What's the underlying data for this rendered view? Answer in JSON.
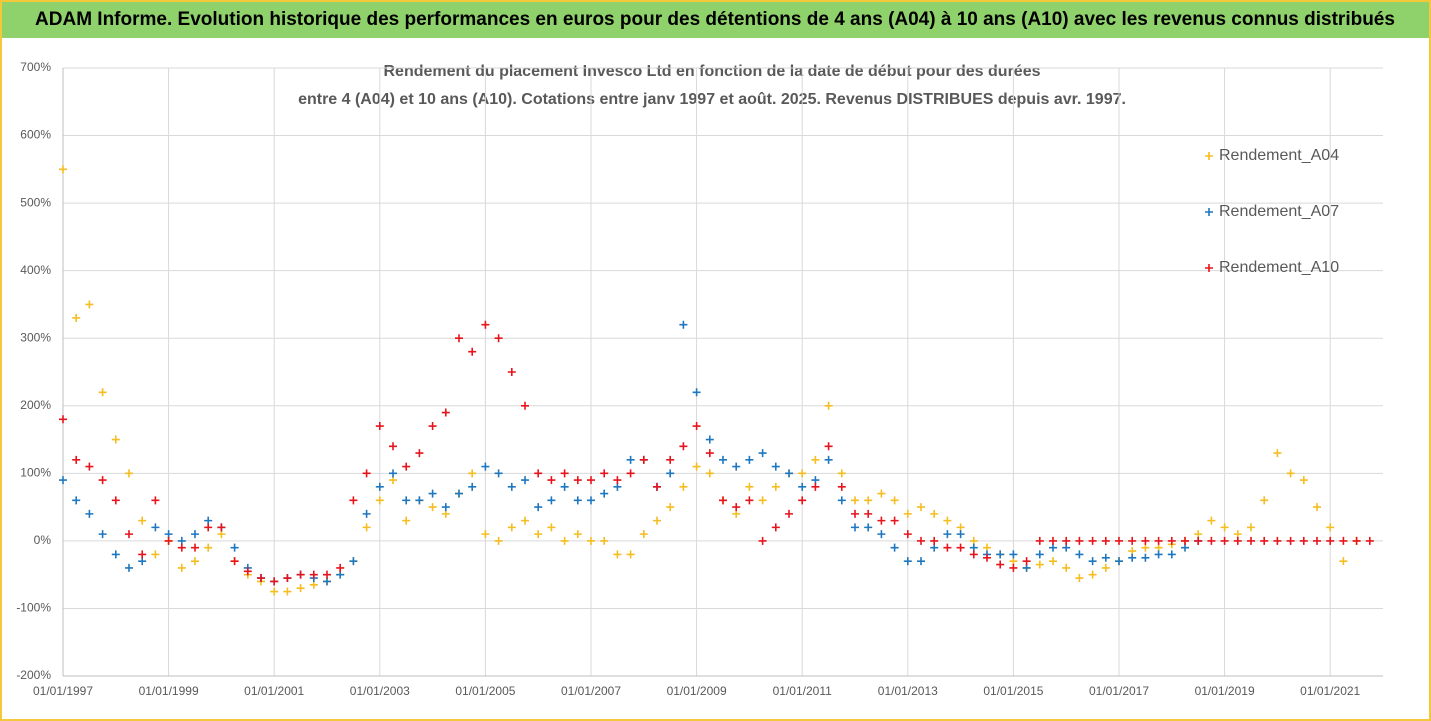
{
  "header": {
    "title": "ADAM Informe. Evolution historique des performances en euros pour des détentions de 4 ans (A04) à 10 ans (A10) avec les revenus connus distribués"
  },
  "chart_data": {
    "type": "scatter",
    "title": "Rendement du placement Invesco Ltd en fonction de la date de début pour des durées",
    "subtitle": "entre 4 (A04) et 10 ans (A10). Cotations entre janv 1997 et août. 2025. Revenus DISTRIBUES depuis avr. 1997.",
    "x": [
      "01/01/1997",
      "01/04/1997",
      "01/07/1997",
      "01/10/1997",
      "01/01/1998",
      "01/04/1998",
      "01/07/1998",
      "01/10/1998",
      "01/01/1999",
      "01/04/1999",
      "01/07/1999",
      "01/10/1999",
      "01/01/2000",
      "01/04/2000",
      "01/07/2000",
      "01/10/2000",
      "01/01/2001",
      "01/04/2001",
      "01/07/2001",
      "01/10/2001",
      "01/01/2002",
      "01/04/2002",
      "01/07/2002",
      "01/10/2002",
      "01/01/2003",
      "01/04/2003",
      "01/07/2003",
      "01/10/2003",
      "01/01/2004",
      "01/04/2004",
      "01/07/2004",
      "01/10/2004",
      "01/01/2005",
      "01/04/2005",
      "01/07/2005",
      "01/10/2005",
      "01/01/2006",
      "01/04/2006",
      "01/07/2006",
      "01/10/2006",
      "01/01/2007",
      "01/04/2007",
      "01/07/2007",
      "01/10/2007",
      "01/01/2008",
      "01/04/2008",
      "01/07/2008",
      "01/10/2008",
      "01/01/2009",
      "01/04/2009",
      "01/07/2009",
      "01/10/2009",
      "01/01/2010",
      "01/04/2010",
      "01/07/2010",
      "01/10/2010",
      "01/01/2011",
      "01/04/2011",
      "01/07/2011",
      "01/10/2011",
      "01/01/2012",
      "01/04/2012",
      "01/07/2012",
      "01/10/2012",
      "01/01/2013",
      "01/04/2013",
      "01/07/2013",
      "01/10/2013",
      "01/01/2014",
      "01/04/2014",
      "01/07/2014",
      "01/10/2014",
      "01/01/2015",
      "01/04/2015",
      "01/07/2015",
      "01/10/2015",
      "01/01/2016",
      "01/04/2016",
      "01/07/2016",
      "01/10/2016",
      "01/01/2017",
      "01/04/2017",
      "01/07/2017",
      "01/10/2017",
      "01/01/2018",
      "01/04/2018",
      "01/07/2018",
      "01/10/2018",
      "01/01/2019",
      "01/04/2019",
      "01/07/2019",
      "01/10/2019",
      "01/01/2020",
      "01/04/2020",
      "01/07/2020",
      "01/10/2020",
      "01/01/2021",
      "01/04/2021",
      "01/07/2021",
      "01/10/2021"
    ],
    "series": [
      {
        "name": "Rendement_A04",
        "color": "#f5bd1f",
        "values": [
          550,
          330,
          350,
          220,
          150,
          100,
          30,
          -20,
          0,
          -40,
          -30,
          -10,
          10,
          -30,
          -50,
          -60,
          -75,
          -75,
          -70,
          -65,
          -60,
          -50,
          -30,
          20,
          60,
          90,
          30,
          60,
          50,
          40,
          70,
          100,
          10,
          0,
          20,
          30,
          10,
          20,
          0,
          10,
          0,
          0,
          -20,
          -20,
          10,
          30,
          50,
          80,
          110,
          100,
          60,
          40,
          80,
          60,
          80,
          100,
          100,
          120,
          200,
          100,
          60,
          60,
          70,
          60,
          40,
          50,
          40,
          30,
          20,
          0,
          -10,
          -20,
          -30,
          -40,
          -35,
          -30,
          -40,
          -55,
          -50,
          -40,
          -30,
          -15,
          -10,
          -10,
          -5,
          0,
          10,
          30,
          20,
          10,
          20,
          60,
          130,
          100,
          90,
          50,
          20,
          -30,
          0,
          null
        ]
      },
      {
        "name": "Rendement_A07",
        "color": "#1f77c0",
        "values": [
          90,
          60,
          40,
          10,
          -20,
          -40,
          -30,
          20,
          10,
          0,
          10,
          30,
          20,
          -10,
          -40,
          -55,
          -60,
          -55,
          -50,
          -55,
          -60,
          -50,
          -30,
          40,
          80,
          100,
          60,
          60,
          70,
          50,
          70,
          80,
          110,
          100,
          80,
          90,
          50,
          60,
          80,
          60,
          60,
          70,
          80,
          120,
          120,
          80,
          100,
          320,
          220,
          150,
          120,
          110,
          120,
          130,
          110,
          100,
          80,
          90,
          120,
          60,
          20,
          20,
          10,
          -10,
          -30,
          -30,
          -10,
          10,
          10,
          -10,
          -20,
          -20,
          -20,
          -40,
          -20,
          -10,
          -10,
          -20,
          -30,
          -25,
          -30,
          -25,
          -25,
          -20,
          -20,
          -10,
          0,
          null,
          null,
          null,
          null,
          null,
          null,
          null,
          null,
          null,
          null,
          null,
          null,
          null
        ]
      },
      {
        "name": "Rendement_A10",
        "color": "#e8141c",
        "values": [
          180,
          120,
          110,
          90,
          60,
          10,
          -20,
          60,
          0,
          -10,
          -10,
          20,
          20,
          -30,
          -45,
          -55,
          -60,
          -55,
          -50,
          -50,
          -50,
          -40,
          60,
          100,
          170,
          140,
          110,
          130,
          170,
          190,
          300,
          280,
          320,
          300,
          250,
          200,
          100,
          90,
          100,
          90,
          90,
          100,
          90,
          100,
          120,
          80,
          120,
          140,
          170,
          130,
          60,
          50,
          60,
          0,
          20,
          40,
          60,
          80,
          140,
          80,
          40,
          40,
          30,
          30,
          10,
          0,
          0,
          -10,
          -10,
          -20,
          -25,
          -35,
          -40,
          -30,
          0,
          0,
          0,
          0,
          0,
          0,
          0,
          0,
          0,
          0,
          0,
          0,
          0,
          0,
          0,
          0,
          0,
          0,
          0,
          0,
          0,
          0,
          0,
          0,
          0,
          0
        ]
      }
    ],
    "xlim": [
      "01/01/1997",
      "01/01/2022"
    ],
    "xticks": [
      "01/01/1997",
      "01/01/1999",
      "01/01/2001",
      "01/01/2003",
      "01/01/2005",
      "01/01/2007",
      "01/01/2009",
      "01/01/2011",
      "01/01/2013",
      "01/01/2015",
      "01/01/2017",
      "01/01/2019",
      "01/01/2021"
    ],
    "ylim": [
      -200,
      700
    ],
    "yticks": [
      {
        "value": -200,
        "label": "-200%"
      },
      {
        "value": -100,
        "label": "-100%"
      },
      {
        "value": 0,
        "label": "0%"
      },
      {
        "value": 100,
        "label": "100%"
      },
      {
        "value": 200,
        "label": "200%"
      },
      {
        "value": 300,
        "label": "300%"
      },
      {
        "value": 400,
        "label": "400%"
      },
      {
        "value": 500,
        "label": "500%"
      },
      {
        "value": 600,
        "label": "600%"
      },
      {
        "value": 700,
        "label": "700%"
      }
    ],
    "grid": true,
    "legend": "upper right"
  }
}
